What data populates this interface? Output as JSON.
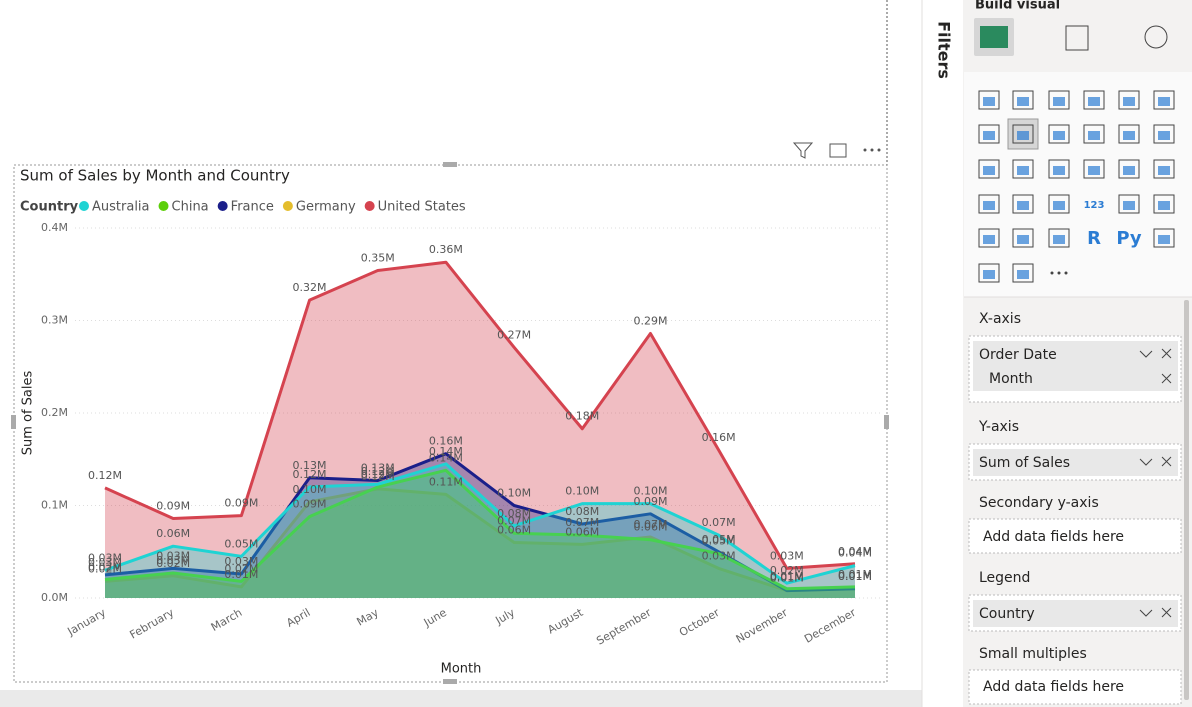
{
  "filters_label": "Filters",
  "build_visual": {
    "title": "Build visual",
    "icon_texts": [
      "123",
      "R",
      "Py"
    ]
  },
  "wells": [
    {
      "label": "X-axis",
      "fields": [
        "Order Date",
        "Month"
      ]
    },
    {
      "label": "Y-axis",
      "fields": [
        "Sum of Sales"
      ]
    },
    {
      "label": "Secondary y-axis",
      "placeholder": "Add data fields here"
    },
    {
      "label": "Legend",
      "fields": [
        "Country"
      ]
    },
    {
      "label": "Small multiples",
      "placeholder": "Add data fields here"
    }
  ],
  "chart_data": {
    "type": "area",
    "title": "Sum of Sales by Month and Country",
    "x_label": "Month",
    "y_label": "Sum of Sales",
    "legend_title": "Country",
    "categories": [
      "January",
      "February",
      "March",
      "April",
      "May",
      "June",
      "July",
      "August",
      "September",
      "October",
      "November",
      "December"
    ],
    "ylim": [
      0,
      400000
    ],
    "yticks": [
      {
        "value": 0,
        "label": "0.0M"
      },
      {
        "value": 100000,
        "label": "0.1M"
      },
      {
        "value": 200000,
        "label": "0.2M"
      },
      {
        "value": 300000,
        "label": "0.3M"
      },
      {
        "value": 400000,
        "label": "0.4M"
      }
    ],
    "grid": true,
    "series": [
      {
        "name": "Australia",
        "color": "#1fd3d3",
        "values": [
          30000,
          56000,
          45000,
          120000,
          123000,
          145000,
          78000,
          102000,
          102000,
          68000,
          16000,
          35000
        ],
        "value_labels": [
          "0.03M",
          "0.06M",
          "0.05M",
          "0.12M",
          "0.12M",
          "0.14M",
          "0.08M",
          "0.10M",
          "0.10M",
          "0.07M",
          "0.02M",
          "0.04M"
        ]
      },
      {
        "name": "China",
        "color": "#5ccf0a",
        "values": [
          20000,
          27000,
          18000,
          88000,
          120000,
          138000,
          70000,
          68000,
          63000,
          48000,
          10000,
          12000
        ],
        "value_labels": [
          "0.02M",
          "0.03M",
          "0.02M",
          "0.09M",
          "0.12M",
          "0.14M",
          "0.07M",
          "0.07M",
          "0.06M",
          "0.05M",
          "0.01M",
          "0.01M"
        ]
      },
      {
        "name": "France",
        "color": "#1b1f8a",
        "values": [
          25000,
          32000,
          26000,
          130000,
          127000,
          156000,
          100000,
          80000,
          91000,
          50000,
          8000,
          10000
        ],
        "value_labels": [
          "0.03M",
          "0.03M",
          "0.03M",
          "0.13M",
          "0.13M",
          "0.16M",
          "0.10M",
          "0.08M",
          "0.09M",
          "0.05M",
          "0.01M",
          "0.01M"
        ]
      },
      {
        "name": "Germany",
        "color": "#e4bd2c",
        "values": [
          18000,
          24000,
          12000,
          104000,
          118000,
          112000,
          60000,
          58000,
          66000,
          32000,
          8000,
          10000
        ],
        "value_labels": [
          "0.02M",
          "0.02M",
          "0.01M",
          "0.10M",
          "0.12M",
          "0.11M",
          "0.06M",
          "0.06M",
          "0.07M",
          "0.03M",
          "0.01M",
          "0.01M"
        ]
      },
      {
        "name": "United States",
        "color": "#d5434f",
        "values": [
          119000,
          86000,
          89000,
          322000,
          354000,
          363000,
          271000,
          183000,
          286000,
          160000,
          32000,
          37000
        ],
        "value_labels": [
          "0.12M",
          "0.09M",
          "0.09M",
          "0.32M",
          "0.35M",
          "0.36M",
          "0.27M",
          "0.18M",
          "0.29M",
          "0.16M",
          "0.03M",
          "0.04M"
        ]
      }
    ]
  }
}
